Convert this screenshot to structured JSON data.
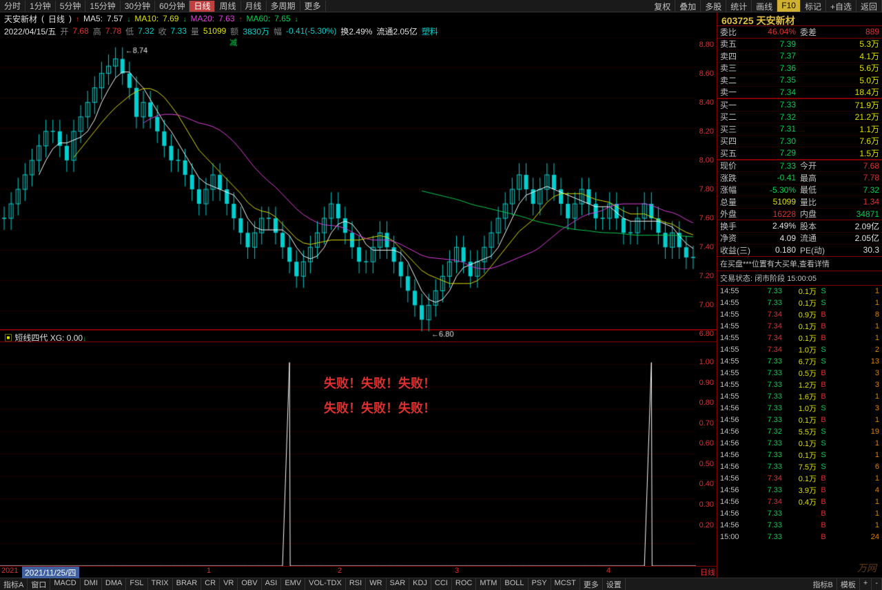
{
  "topbar": {
    "tabs": [
      "分时",
      "1分钟",
      "5分钟",
      "15分钟",
      "30分钟",
      "60分钟",
      "日线",
      "周线",
      "月线",
      "多周期",
      "更多"
    ],
    "active_index": 6,
    "right_tabs": [
      "复权",
      "叠加",
      "多股",
      "统计",
      "画线",
      "F10",
      "标记",
      "+自选",
      "返回"
    ]
  },
  "header": {
    "name": "天安新材",
    "period": "日线",
    "ma5": "7.57",
    "ma10": "7.69",
    "ma20": "7.63",
    "ma60": "7.65",
    "date": "2022/04/15/五",
    "open": "7.68",
    "high": "7.78",
    "low": "7.32",
    "close": "7.33",
    "vol": "51099",
    "amount": "3830万",
    "change": "-0.41(-5.30%)",
    "turnover": "换2.49%",
    "float": "流通2.05亿",
    "sector": "塑料"
  },
  "candle": {
    "ylim": [
      6.75,
      8.85
    ],
    "yticks": [
      8.8,
      8.6,
      8.4,
      8.2,
      8.0,
      7.8,
      7.6,
      7.4,
      7.2,
      7.0,
      6.8
    ],
    "high_label": "8.74",
    "low_label": "6.80",
    "background": "#000000",
    "grid_color": "#200000",
    "ma_colors": {
      "ma5": "#ffffff",
      "ma10": "#e0e000",
      "ma20": "#e040e0",
      "ma60": "#00d050"
    },
    "candle_up_color": "#00d0d0",
    "candle_down_color": "#303030",
    "candle_up_border": "#00d0d0",
    "annotation_jian": "减",
    "xticks": [
      "2021",
      "1",
      "2",
      "3",
      "4"
    ],
    "date_selected": "2021/11/25/四"
  },
  "indicator": {
    "name": "短线四代",
    "param": "XG: 0.00",
    "ylim": [
      0,
      1.1
    ],
    "yticks": [
      1.0,
      0.9,
      0.8,
      0.7,
      0.6,
      0.5,
      0.4,
      0.3,
      0.2
    ],
    "line_color": "#ffffff",
    "fail_text": "失败！失败！失败！\n失败！失败！失败！",
    "spikes": [
      41,
      93
    ]
  },
  "bottom_left": [
    "指标A",
    "窗口",
    "MACD",
    "DMI",
    "DMA",
    "FSL",
    "TRIX",
    "BRAR",
    "CR",
    "VR",
    "OBV",
    "ASI",
    "EMV",
    "VOL-TDX",
    "RSI",
    "WR",
    "SAR",
    "KDJ",
    "CCI",
    "ROC",
    "MTM",
    "BOLL",
    "PSY",
    "MCST",
    "更多",
    "设置"
  ],
  "bottom_right": [
    "指标B",
    "模板",
    "+",
    "-"
  ],
  "side": {
    "code": "603725",
    "name": "天安新材",
    "weibi": "46.04%",
    "weicha": "889",
    "asks": [
      [
        "卖五",
        "7.39",
        "5.3万"
      ],
      [
        "卖四",
        "7.37",
        "4.1万"
      ],
      [
        "卖三",
        "7.36",
        "5.6万"
      ],
      [
        "卖二",
        "7.35",
        "5.0万"
      ],
      [
        "卖一",
        "7.34",
        "18.4万"
      ]
    ],
    "bids": [
      [
        "买一",
        "7.33",
        "71.9万"
      ],
      [
        "买二",
        "7.32",
        "21.2万"
      ],
      [
        "买三",
        "7.31",
        "1.1万"
      ],
      [
        "买四",
        "7.30",
        "7.6万"
      ],
      [
        "买五",
        "7.29",
        "1.5万"
      ]
    ],
    "quote": [
      [
        "现价",
        "7.33",
        "green",
        "今开",
        "7.68",
        "red"
      ],
      [
        "涨跌",
        "-0.41",
        "green",
        "最高",
        "7.78",
        "red"
      ],
      [
        "涨幅",
        "-5.30%",
        "green",
        "最低",
        "7.32",
        "green"
      ],
      [
        "总量",
        "51099",
        "yellow",
        "量比",
        "1.34",
        "red"
      ],
      [
        "外盘",
        "16228",
        "red",
        "内盘",
        "34871",
        "green"
      ],
      [
        "换手",
        "2.49%",
        "white",
        "股本",
        "2.09亿",
        "white"
      ],
      [
        "净资",
        "4.09",
        "white",
        "流通",
        "2.05亿",
        "white"
      ],
      [
        "收益(三)",
        "0.180",
        "white",
        "PE(动)",
        "30.3",
        "white"
      ]
    ],
    "msg1": "在买盘***位置有大买单,查看详情",
    "status_label": "交易状态:",
    "status": "闭市阶段",
    "status_time": "15:00:05",
    "trades": [
      [
        "14:55",
        "7.33",
        "0.1万",
        "S",
        "1"
      ],
      [
        "14:55",
        "7.33",
        "0.1万",
        "S",
        "1"
      ],
      [
        "14:55",
        "7.34",
        "0.9万",
        "B",
        "8"
      ],
      [
        "14:55",
        "7.34",
        "0.1万",
        "B",
        "1"
      ],
      [
        "14:55",
        "7.34",
        "0.1万",
        "B",
        "1"
      ],
      [
        "14:55",
        "7.34",
        "1.0万",
        "S",
        "2"
      ],
      [
        "14:55",
        "7.33",
        "6.7万",
        "S",
        "13"
      ],
      [
        "14:55",
        "7.33",
        "0.5万",
        "B",
        "3"
      ],
      [
        "14:55",
        "7.33",
        "1.2万",
        "B",
        "3"
      ],
      [
        "14:55",
        "7.33",
        "1.6万",
        "B",
        "1"
      ],
      [
        "14:56",
        "7.33",
        "1.0万",
        "S",
        "3"
      ],
      [
        "14:56",
        "7.33",
        "0.1万",
        "B",
        "1"
      ],
      [
        "14:56",
        "7.32",
        "5.5万",
        "S",
        "19"
      ],
      [
        "14:56",
        "7.33",
        "0.1万",
        "S",
        "1"
      ],
      [
        "14:56",
        "7.33",
        "0.1万",
        "S",
        "1"
      ],
      [
        "14:56",
        "7.33",
        "7.5万",
        "S",
        "6"
      ],
      [
        "14:56",
        "7.34",
        "0.1万",
        "B",
        "1"
      ],
      [
        "14:56",
        "7.33",
        "3.9万",
        "B",
        "4"
      ],
      [
        "14:56",
        "7.34",
        "0.4万",
        "B",
        "1"
      ],
      [
        "14:56",
        "7.33",
        "",
        "B",
        "1"
      ],
      [
        "14:56",
        "7.33",
        "",
        "B",
        "1"
      ],
      [
        "15:00",
        "7.33",
        "",
        "B",
        "24"
      ]
    ],
    "side_tab": "日线"
  },
  "logo": "万网"
}
